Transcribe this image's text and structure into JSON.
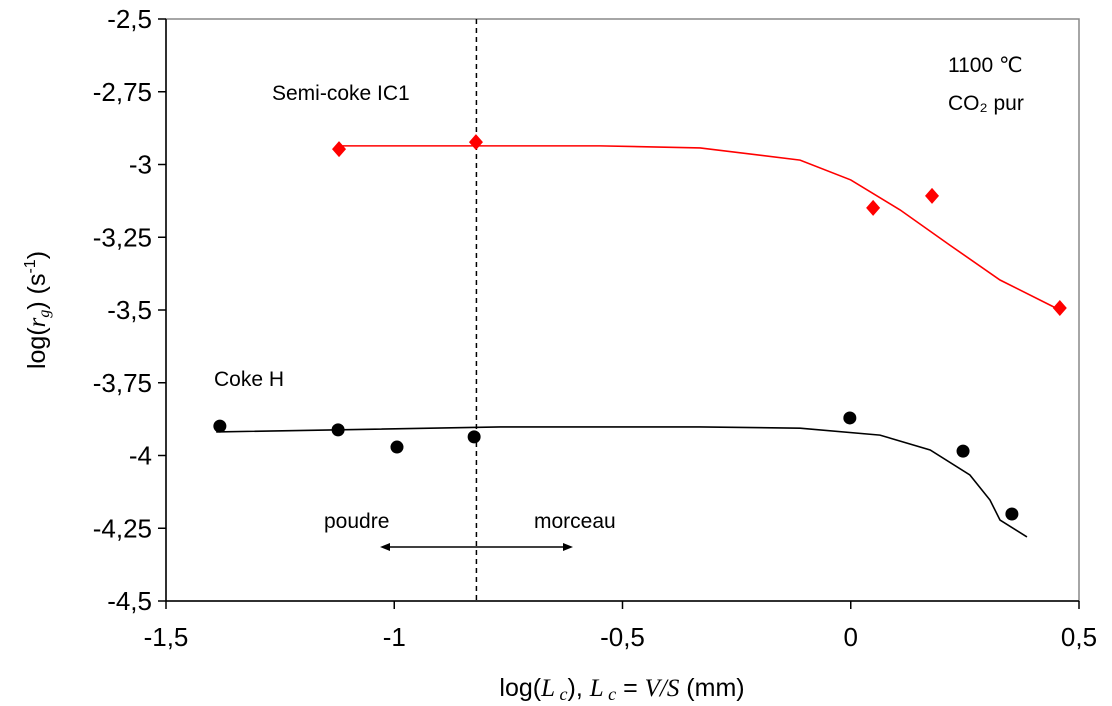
{
  "chart_data": {
    "type": "scatter",
    "xlim": [
      -1.5,
      0.5
    ],
    "ylim": [
      -4.5,
      -2.5
    ],
    "xticks": [
      {
        "value": -1.5,
        "label": "-1,5"
      },
      -1,
      {
        "value": -0.5,
        "label": "-0,5"
      },
      0,
      {
        "value": 0.5,
        "label": "0,5"
      }
    ],
    "yticks": [
      {
        "value": -2.5,
        "label": "-2,5"
      },
      {
        "value": -2.75,
        "label": "-2,75"
      },
      -3,
      {
        "value": -3.25,
        "label": "-3,25"
      },
      {
        "value": -3.5,
        "label": "-3,5"
      },
      {
        "value": -3.75,
        "label": "-3,75"
      },
      -4,
      {
        "value": -4.25,
        "label": "-4,25"
      },
      {
        "value": -4.5,
        "label": "-4,5"
      }
    ],
    "xlabel": [
      "log(",
      "L",
      " c",
      "), ",
      "L",
      " c",
      " = ",
      "V/S",
      " (mm)"
    ],
    "ylabel": [
      "log(",
      "r",
      "g",
      ") (s",
      "-1",
      ")"
    ],
    "vline": -0.82,
    "annotations": [
      "1100 ℃",
      "CO₂ pur",
      "poudre",
      "morceau"
    ],
    "series": [
      {
        "name": "Semi-coke IC1",
        "color": "#ff0000",
        "marker": "diamond",
        "x": [
          -1.121,
          -0.821,
          0.049,
          0.178,
          0.458
        ],
        "values": [
          -2.947,
          -2.923,
          -3.149,
          -3.108,
          -3.493
        ],
        "fit": {
          "x": [
            -1.121,
            -0.549,
            -0.33,
            -0.111,
            0,
            0.108,
            0.217,
            0.327,
            0.458
          ],
          "values": [
            -2.936,
            -2.936,
            -2.943,
            -2.985,
            -3.053,
            -3.156,
            -3.277,
            -3.397,
            -3.5
          ]
        }
      },
      {
        "name": "Coke H",
        "color": "#000000",
        "marker": "circle",
        "x": [
          -1.382,
          -1.123,
          -0.994,
          -0.825,
          -0.002,
          0.246,
          0.353
        ],
        "values": [
          -3.899,
          -3.912,
          -3.971,
          -3.936,
          -3.871,
          -3.985,
          -4.201
        ],
        "fit": {
          "x": [
            -1.39,
            -0.768,
            -0.33,
            -0.111,
            0.064,
            0.174,
            0.261,
            0.305,
            0.327,
            0.386
          ],
          "values": [
            -3.919,
            -3.902,
            -3.902,
            -3.906,
            -3.93,
            -3.981,
            -4.067,
            -4.153,
            -4.222,
            -4.28
          ]
        }
      }
    ]
  }
}
